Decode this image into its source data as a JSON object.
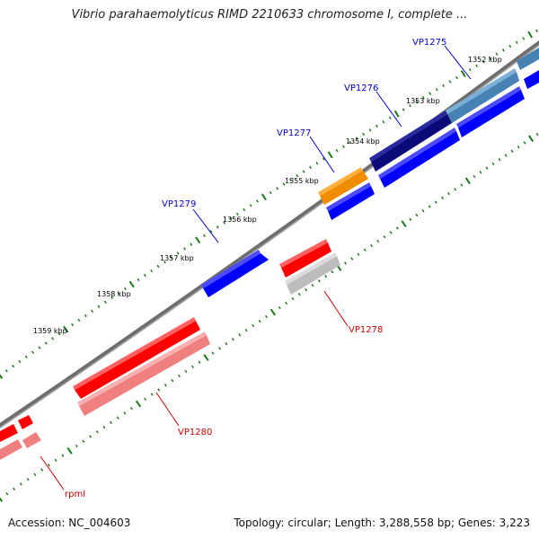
{
  "title": "Vibrio parahaemolyticus RIMD 2210633 chromosome I, complete ...",
  "footer": {
    "accession": "Accession: NC_004603",
    "summary": "Topology: circular; Length: 3,288,558 bp; Genes: 3,223"
  },
  "scale_labels": [
    "1352 kbp",
    "1353 kbp",
    "1354 kbp",
    "1355 kbp",
    "1356 kbp",
    "1357 kbp",
    "1358 kbp",
    "1359 kbp"
  ],
  "gene_labels": [
    {
      "name": "VP1275",
      "color": "#0000cc"
    },
    {
      "name": "VP1276",
      "color": "#0000cc"
    },
    {
      "name": "VP1277",
      "color": "#0000cc"
    },
    {
      "name": "VP1279",
      "color": "#0000cc"
    },
    {
      "name": "VP1278",
      "color": "#cc0000"
    },
    {
      "name": "VP1280",
      "color": "#cc0000"
    },
    {
      "name": "rpmI",
      "color": "#cc0000"
    }
  ],
  "colors": {
    "forward_gene": "#0000ff",
    "reverse_gene": "#ff0000",
    "backbone": "#808080",
    "tick": "#1a7a1a",
    "feature_orange": "#f08c00",
    "feature_navy": "#0a0a78",
    "feature_steel": "#4682b4",
    "feature_pink": "#f08080",
    "feature_gray": "#bdbdbd"
  }
}
